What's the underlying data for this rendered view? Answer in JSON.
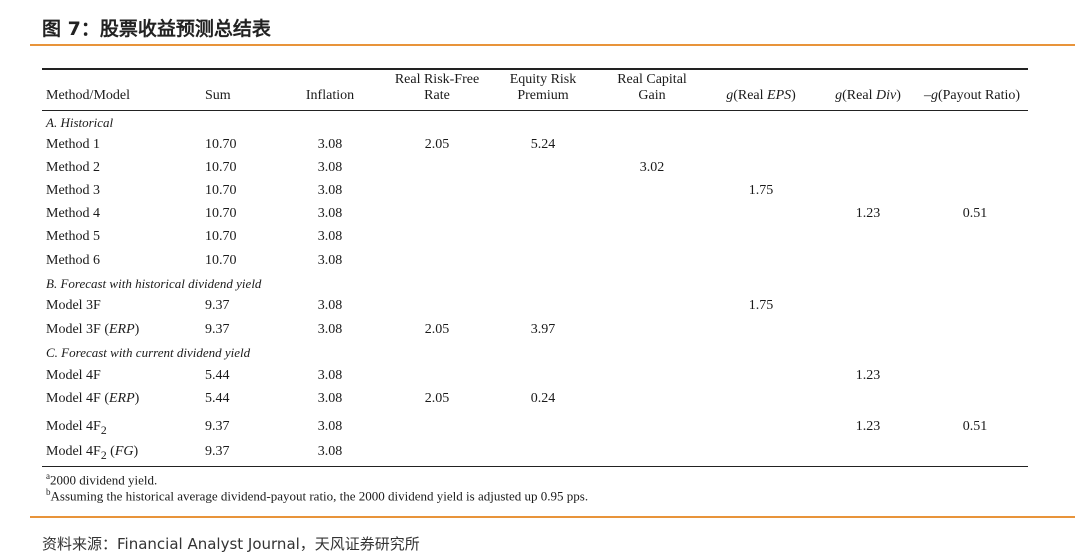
{
  "title": "图 7：股票收益预测总结表",
  "headers": {
    "method": "Method/Model",
    "sum": "Sum",
    "inflation": "Inflation",
    "rf_line1": "Real Risk-Free",
    "rf_line2": "Rate",
    "erp_line1": "Equity Risk",
    "erp_line2": "Premium",
    "rcg_line1": "Real Capital",
    "rcg_line2": "Gain",
    "g_eps_prefix": "g",
    "g_eps_open": "(Real ",
    "g_eps_italic": "EPS",
    "g_eps_close": ")",
    "g_div_prefix": "g",
    "g_div_open": "(Real ",
    "g_div_italic": "Div",
    "g_div_close": ")",
    "g_pay_prefix": "–g",
    "g_pay_rest": "(Payout Ratio)"
  },
  "sections": {
    "a": "A. Historical",
    "b": "B. Forecast with historical dividend yield",
    "c": "C. Forecast with current dividend yield"
  },
  "rows": {
    "m1": {
      "name": "Method 1",
      "sum": "10.70",
      "inf": "3.08",
      "rf": "2.05",
      "erp": "5.24"
    },
    "m2": {
      "name": "Method 2",
      "sum": "10.70",
      "inf": "3.08",
      "rcg": "3.02"
    },
    "m3": {
      "name": "Method 3",
      "sum": "10.70",
      "inf": "3.08",
      "geps": "1.75"
    },
    "m4": {
      "name": "Method 4",
      "sum": "10.70",
      "inf": "3.08",
      "gdiv": "1.23",
      "gpay": "0.51"
    },
    "m5": {
      "name": "Method 5",
      "sum": "10.70",
      "inf": "3.08"
    },
    "m6": {
      "name": "Method 6",
      "sum": "10.70",
      "inf": "3.08"
    },
    "b1": {
      "name": "Model 3F",
      "sum": "9.37",
      "inf": "3.08",
      "geps": "1.75"
    },
    "b2": {
      "name_main": "Model 3F (",
      "name_it": "ERP",
      "name_end": ")",
      "sum": "9.37",
      "inf": "3.08",
      "rf": "2.05",
      "erp": "3.97"
    },
    "c1": {
      "name": "Model 4F",
      "sum": "5.44",
      "inf": "3.08",
      "gdiv": "1.23"
    },
    "c2": {
      "name_main": "Model 4F (",
      "name_it": "ERP",
      "name_end": ")",
      "sum": "5.44",
      "inf": "3.08",
      "rf": "2.05",
      "erp": "0.24"
    },
    "c3": {
      "name_main": "Model 4F",
      "name_sub": "2",
      "sum": "9.37",
      "inf": "3.08",
      "gdiv": "1.23",
      "gpay": "0.51"
    },
    "c4": {
      "name_main": "Model 4F",
      "name_sub": "2",
      "name_paren": " (",
      "name_it": "FG",
      "name_end": ")",
      "sum": "9.37",
      "inf": "3.08"
    }
  },
  "notes": {
    "a_mark": "a",
    "a_text": "2000 dividend yield.",
    "b_mark": "b",
    "b_text": "Assuming the historical average dividend-payout ratio, the 2000 dividend yield is adjusted up 0.95 pps."
  },
  "source": "资料来源：Financial Analyst Journal，天风证券研究所",
  "colors": {
    "accent": "#e8943a"
  }
}
